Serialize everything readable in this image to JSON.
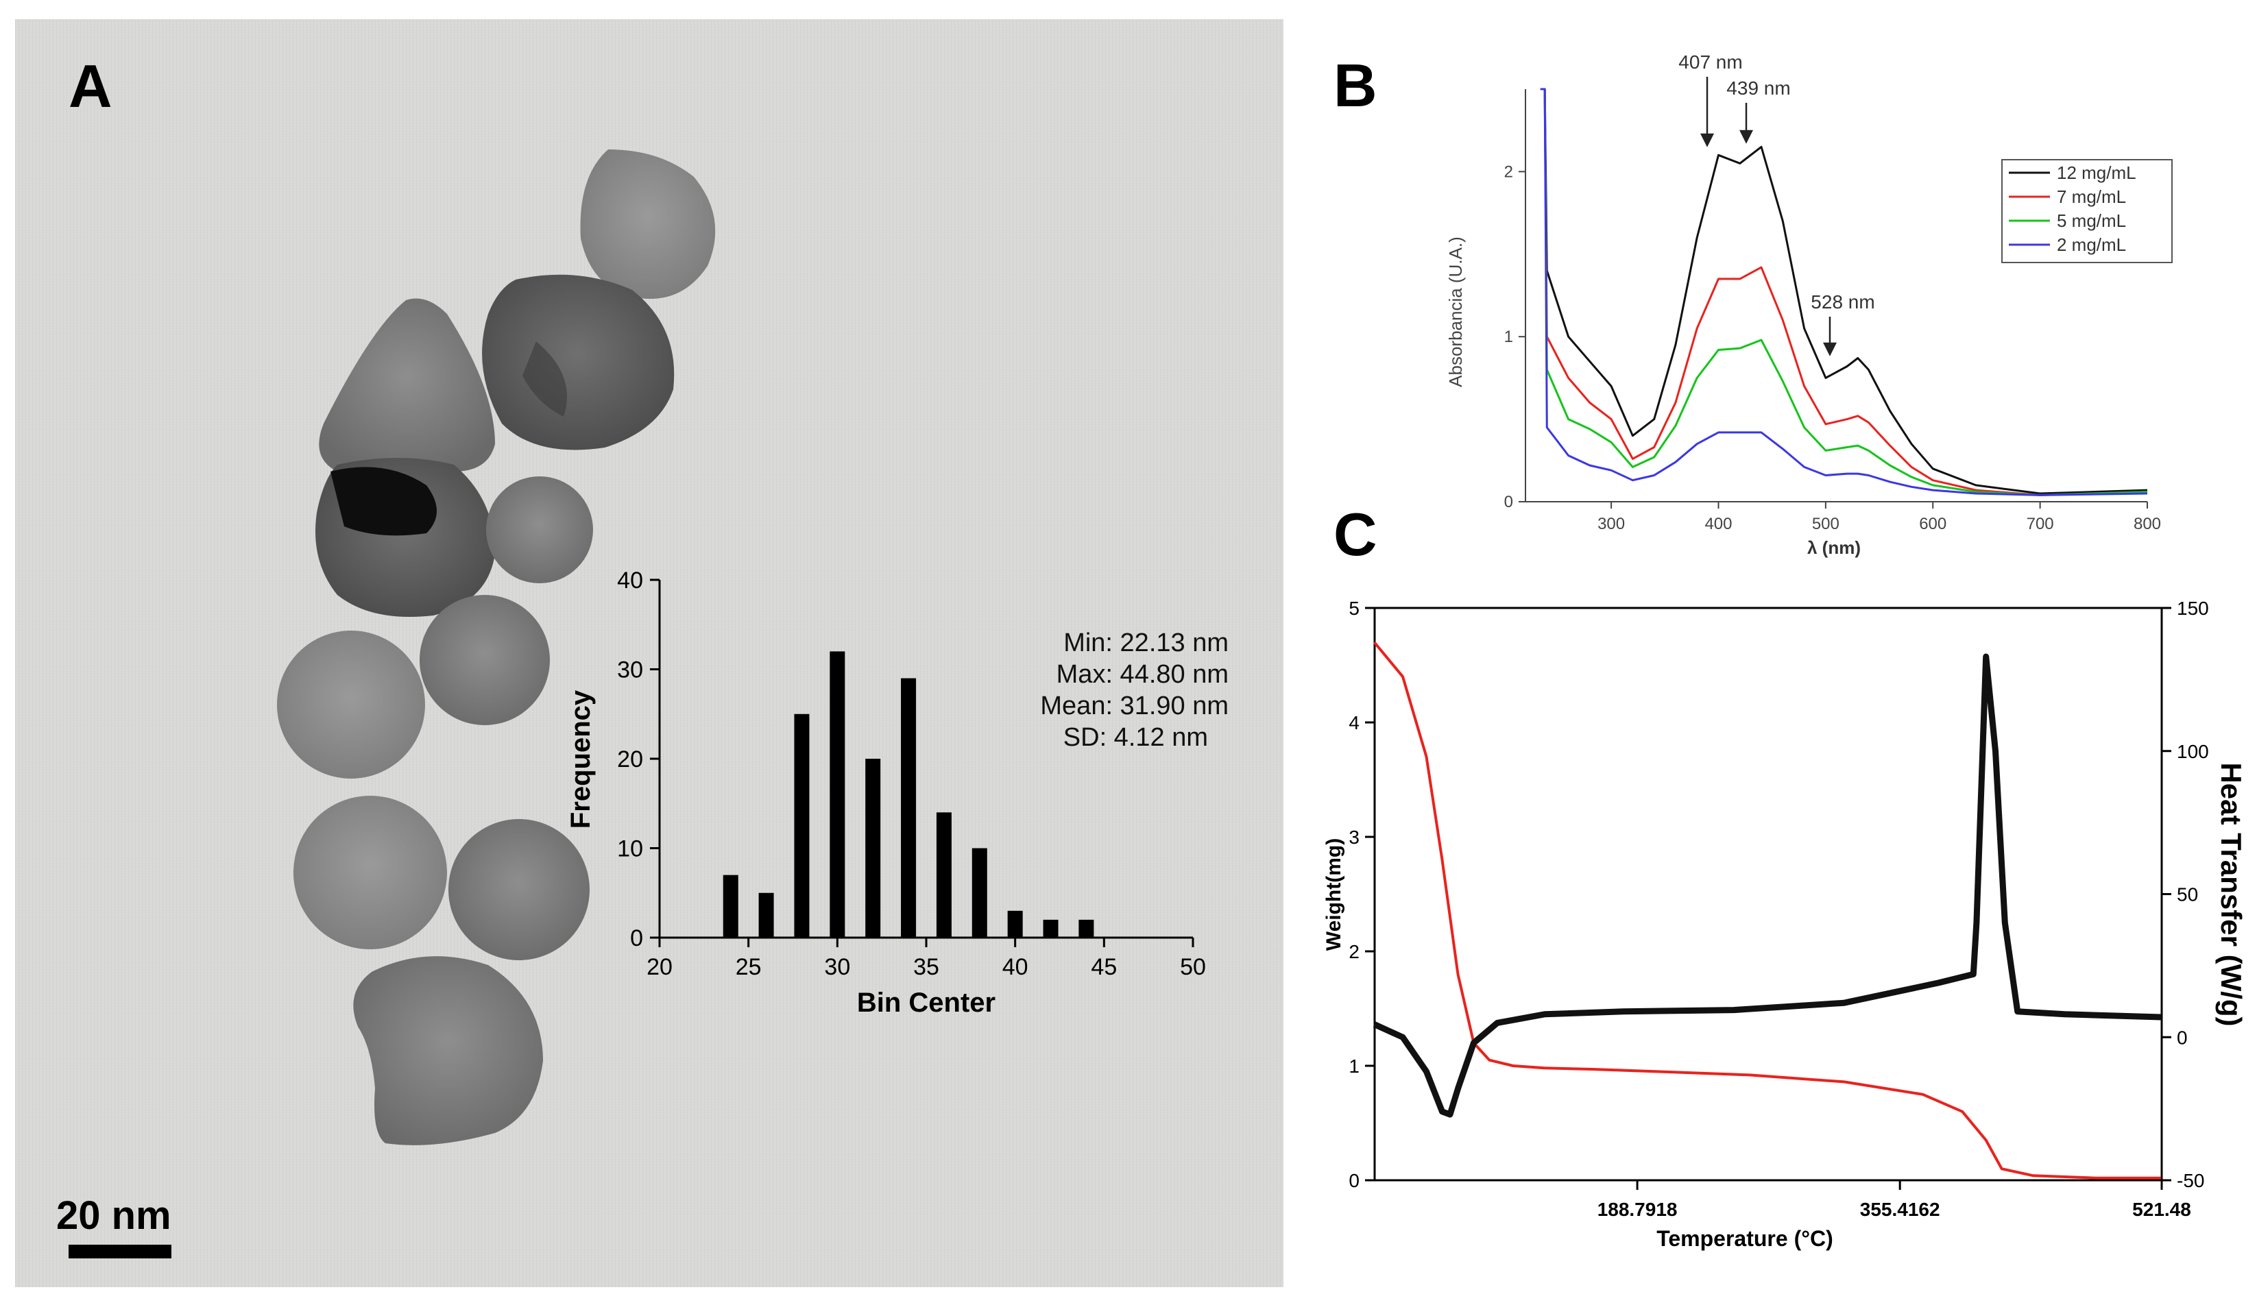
{
  "panels": {
    "a": "A",
    "b": "B",
    "c": "C"
  },
  "scale_bar": "20 nm",
  "colors": {
    "red": "#e8231e",
    "green": "#16c41b",
    "blue": "#3b37e6",
    "black": "#111111",
    "red_light": "#f47a7a"
  },
  "chart_data": [
    {
      "type": "bar",
      "panel": "A",
      "title": "",
      "xlabel": "Bin Center",
      "ylabel": "Frequency",
      "x": [
        24,
        26,
        28,
        30,
        32,
        34,
        36,
        38,
        40,
        42,
        44
      ],
      "values": [
        7,
        5,
        25,
        32,
        20,
        29,
        14,
        10,
        3,
        2,
        2
      ],
      "xlim": [
        20,
        50
      ],
      "ylim": [
        0,
        40
      ],
      "x_ticks": [
        "20",
        "25",
        "30",
        "35",
        "40",
        "45",
        "50"
      ],
      "y_ticks": [
        "0",
        "10",
        "20",
        "30",
        "40"
      ],
      "annotations": [
        "Min: 22.13 nm",
        "Max: 44.80 nm",
        "Mean: 31.90 nm",
        "SD: 4.12 nm"
      ]
    },
    {
      "type": "line",
      "panel": "B",
      "xlabel": "λ (nm)",
      "ylabel": "Absorbancia (U.A.)",
      "xlim": [
        220,
        800
      ],
      "ylim": [
        0,
        2.5
      ],
      "x_ticks": [
        "300",
        "400",
        "500",
        "600",
        "700",
        "800"
      ],
      "y_ticks": [
        "0",
        "1",
        "2"
      ],
      "legend_position": "top-right",
      "annotations": [
        "407 nm",
        "439 nm",
        "528 nm"
      ],
      "series": [
        {
          "name": "12 mg/mL",
          "color": "#111111",
          "x": [
            240,
            260,
            280,
            300,
            320,
            340,
            360,
            380,
            400,
            420,
            440,
            460,
            480,
            500,
            520,
            530,
            540,
            560,
            580,
            600,
            640,
            700,
            800
          ],
          "y": [
            1.4,
            1.0,
            0.85,
            0.7,
            0.4,
            0.5,
            0.95,
            1.6,
            2.1,
            2.05,
            2.15,
            1.7,
            1.05,
            0.75,
            0.82,
            0.87,
            0.8,
            0.55,
            0.35,
            0.2,
            0.1,
            0.05,
            0.07
          ]
        },
        {
          "name": "7 mg/mL",
          "color": "#e8231e",
          "x": [
            240,
            260,
            280,
            300,
            320,
            340,
            360,
            380,
            400,
            420,
            440,
            460,
            480,
            500,
            520,
            530,
            540,
            560,
            580,
            600,
            640,
            700,
            800
          ],
          "y": [
            1.0,
            0.75,
            0.6,
            0.5,
            0.26,
            0.33,
            0.6,
            1.05,
            1.35,
            1.35,
            1.42,
            1.1,
            0.7,
            0.47,
            0.5,
            0.52,
            0.48,
            0.34,
            0.21,
            0.13,
            0.07,
            0.04,
            0.06
          ]
        },
        {
          "name": "5 mg/mL",
          "color": "#16c41b",
          "x": [
            240,
            260,
            280,
            300,
            320,
            340,
            360,
            380,
            400,
            420,
            440,
            460,
            480,
            500,
            520,
            530,
            540,
            560,
            580,
            600,
            640,
            700,
            800
          ],
          "y": [
            0.8,
            0.5,
            0.44,
            0.36,
            0.21,
            0.27,
            0.46,
            0.75,
            0.92,
            0.93,
            0.98,
            0.73,
            0.45,
            0.31,
            0.33,
            0.34,
            0.31,
            0.22,
            0.15,
            0.1,
            0.06,
            0.04,
            0.06
          ]
        },
        {
          "name": "2 mg/mL",
          "color": "#3b37e6",
          "x": [
            240,
            260,
            280,
            300,
            320,
            340,
            360,
            380,
            400,
            420,
            440,
            460,
            480,
            500,
            520,
            530,
            540,
            560,
            580,
            600,
            640,
            700,
            800
          ],
          "y": [
            0.45,
            0.28,
            0.22,
            0.19,
            0.13,
            0.16,
            0.24,
            0.35,
            0.42,
            0.42,
            0.42,
            0.32,
            0.21,
            0.16,
            0.17,
            0.17,
            0.16,
            0.12,
            0.09,
            0.07,
            0.05,
            0.04,
            0.05
          ]
        }
      ]
    },
    {
      "type": "line",
      "panel": "C",
      "xlabel": "Temperature (°C)",
      "ylabel": "Weight(mg)",
      "y2label": "Heat Transfer (W/g)",
      "xlim": [
        22.17,
        521.48
      ],
      "ylim": [
        0,
        5
      ],
      "y2lim": [
        -50,
        150
      ],
      "x_ticks": [
        "188.7918",
        "355.4162",
        "521.48"
      ],
      "y_ticks": [
        "0",
        "1",
        "2",
        "3",
        "4",
        "5"
      ],
      "y2_ticks": [
        "-50",
        "0",
        "50",
        "100",
        "150"
      ],
      "series": [
        {
          "name": "Weight",
          "axis": "left",
          "color": "#e8231e",
          "x": [
            22,
            40,
            55,
            65,
            75,
            85,
            95,
            110,
            130,
            160,
            200,
            260,
            320,
            370,
            395,
            410,
            420,
            440,
            480,
            521
          ],
          "y": [
            4.7,
            4.4,
            3.7,
            2.8,
            1.8,
            1.2,
            1.05,
            1.0,
            0.98,
            0.97,
            0.95,
            0.92,
            0.86,
            0.75,
            0.6,
            0.35,
            0.1,
            0.04,
            0.02,
            0.02
          ]
        },
        {
          "name": "Heat Transfer",
          "axis": "right",
          "color": "#111111",
          "x": [
            22,
            40,
            55,
            65,
            70,
            75,
            85,
            100,
            130,
            180,
            250,
            320,
            380,
            402,
            404,
            410,
            416,
            422,
            430,
            460,
            521
          ],
          "y": [
            4.5,
            0,
            -12,
            -26,
            -27,
            -18,
            -2,
            5,
            8,
            9,
            9.5,
            12,
            19,
            22,
            40,
            133,
            100,
            40,
            9,
            8,
            7
          ]
        }
      ]
    }
  ]
}
